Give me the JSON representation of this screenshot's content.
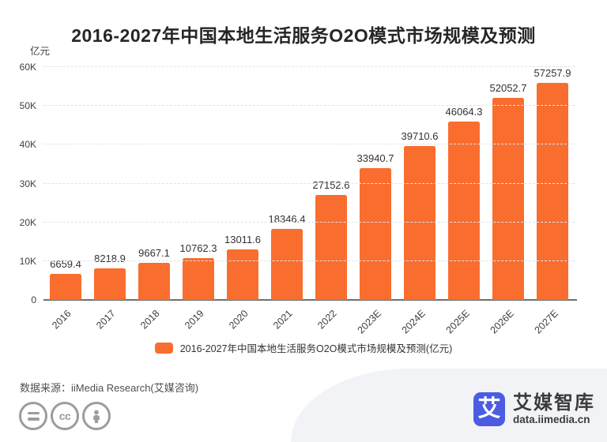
{
  "chart_data": {
    "type": "bar",
    "title": "2016-2027年中国本地生活服务O2O模式市场规模及预测",
    "ylabel": "亿元",
    "categories": [
      "2016",
      "2017",
      "2018",
      "2019",
      "2020",
      "2021",
      "2022",
      "2023E",
      "2024E",
      "2025E",
      "2026E",
      "2027E"
    ],
    "values": [
      6659.4,
      8218.9,
      9667.1,
      10762.3,
      13011.6,
      18346.4,
      27152.6,
      33940.7,
      39710.6,
      46064.3,
      52052.7,
      57257.9
    ],
    "ylim": [
      0,
      60000
    ],
    "yticks": [
      "0",
      "10K",
      "20K",
      "30K",
      "40K",
      "50K",
      "60K"
    ],
    "grid": true,
    "legend_position": "bottom",
    "legend": "2016-2027年中国本地生活服务O2O模式市场规模及预测(亿元)",
    "bar_color": "#f96e2e",
    "gridline_color": "#dde2ee",
    "axis_color": "#707070"
  },
  "footer": {
    "source": "数据来源：iiMedia Research(艾媒咨询)",
    "license_icons": [
      "equals-icon",
      "cc-icon",
      "person-icon"
    ]
  },
  "logo": {
    "mark": "艾",
    "name": "艾媒智库",
    "domain": "data.iimedia.cn",
    "brand_color": "#4c5ce2"
  }
}
